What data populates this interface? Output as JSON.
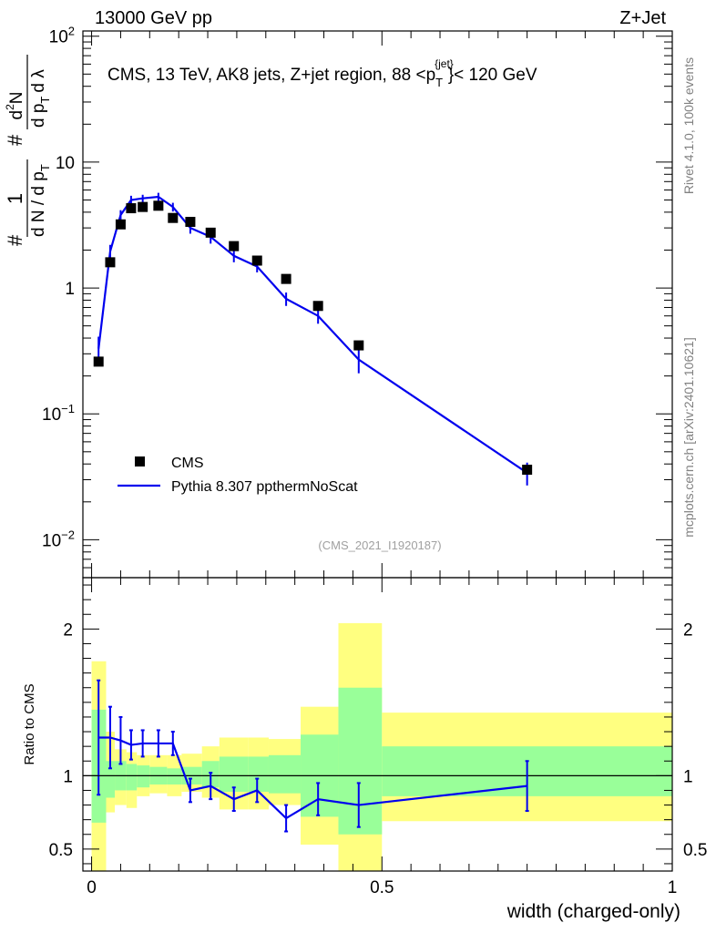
{
  "header": {
    "left": "13000 GeV pp",
    "right": "Z+Jet"
  },
  "side": {
    "rivet": "Rivet 4.1.0,  100k events",
    "mcplots": "mcplots.cern.ch [arXiv:2401.10621]"
  },
  "colors": {
    "data": "#000000",
    "mc": "#0000ee",
    "band_inner": "#99ff99",
    "band_outer": "#ffff80"
  },
  "chart_data": {
    "type": "scatter",
    "title": "CMS, 13 TeV, AK8 jets, Z+jet region, 88 <p_T^{jet}< 120 GeV",
    "title_parts": {
      "main": "CMS, 13 TeV, AK8 jets, Z+jet region, 88 <p",
      "sub": "T",
      "sup": "{jet}",
      "end": "}< 120 GeV"
    },
    "ylabel": "1/dN/dpT # d²N/dpT dλ",
    "ylabel_parts": {
      "hash": "#",
      "num": "1",
      "den": "d N / d p",
      "sub": "T",
      "hash2": "#",
      "num2": "d",
      "sup2": "2",
      "num2b": "N",
      "den2": "d p",
      "sub2": "T",
      "den2b": "d λ"
    },
    "xlabel": "width (charged-only)",
    "analysis_id": "(CMS_2021_I1920187)",
    "yscale": "log",
    "ylim": [
      0.005,
      110
    ],
    "xlim": [
      -0.015,
      1.0
    ],
    "x_ticks": [
      {
        "v": 0,
        "label": "0"
      },
      {
        "v": 0.5,
        "label": "0.5"
      },
      {
        "v": 1,
        "label": "1"
      }
    ],
    "y_ticks": [
      {
        "v": 0.01,
        "base": "10",
        "exp": "−2"
      },
      {
        "v": 0.1,
        "base": "10",
        "exp": "−1"
      },
      {
        "v": 1,
        "base": "1",
        "exp": ""
      },
      {
        "v": 10,
        "base": "10",
        "exp": ""
      },
      {
        "v": 100,
        "base": "10",
        "exp": "2"
      }
    ],
    "legend": {
      "position": "bottom-left",
      "entries": [
        "CMS",
        "Pythia 8.307 ppthermNoScat"
      ]
    },
    "series": [
      {
        "name": "CMS",
        "x": [
          0.012,
          0.032,
          0.05,
          0.068,
          0.088,
          0.115,
          0.14,
          0.17,
          0.205,
          0.245,
          0.285,
          0.335,
          0.39,
          0.46,
          0.75
        ],
        "y": [
          0.26,
          1.6,
          3.2,
          4.3,
          4.4,
          4.5,
          3.6,
          3.35,
          2.75,
          2.15,
          1.65,
          1.18,
          0.72,
          0.35,
          0.036
        ]
      },
      {
        "name": "Pythia 8.307 ppthermNoScat",
        "x": [
          0.012,
          0.032,
          0.05,
          0.068,
          0.088,
          0.115,
          0.14,
          0.17,
          0.205,
          0.245,
          0.285,
          0.335,
          0.39,
          0.46,
          0.75
        ],
        "y": [
          0.33,
          1.95,
          3.8,
          5.0,
          5.15,
          5.3,
          4.4,
          3.0,
          2.55,
          1.8,
          1.48,
          0.82,
          0.6,
          0.27,
          0.034
        ],
        "err": [
          0.08,
          0.25,
          0.35,
          0.4,
          0.35,
          0.4,
          0.35,
          0.3,
          0.3,
          0.2,
          0.15,
          0.1,
          0.08,
          0.06,
          0.007
        ]
      }
    ],
    "ratio": {
      "ylabel": "Ratio to CMS",
      "ylim": [
        0.35,
        2.35
      ],
      "y_ticks": [
        0.5,
        1,
        2
      ],
      "y_tick_labels": [
        "0.5",
        "1",
        "2"
      ],
      "bin_edges": [
        0.0,
        0.025,
        0.04,
        0.06,
        0.078,
        0.1,
        0.13,
        0.155,
        0.19,
        0.22,
        0.27,
        0.305,
        0.36,
        0.425,
        0.5,
        1.0
      ],
      "band_inner": [
        [
          0.68,
          1.45
        ],
        [
          0.85,
          1.1
        ],
        [
          0.9,
          1.1
        ],
        [
          0.9,
          1.08
        ],
        [
          0.92,
          1.07
        ],
        [
          0.94,
          1.06
        ],
        [
          0.94,
          1.05
        ],
        [
          0.94,
          1.06
        ],
        [
          0.92,
          1.1
        ],
        [
          0.89,
          1.13
        ],
        [
          0.89,
          1.13
        ],
        [
          0.88,
          1.14
        ],
        [
          0.72,
          1.28
        ],
        [
          0.6,
          1.6
        ],
        [
          0.86,
          1.2
        ]
      ],
      "band_outer": [
        [
          0.3,
          1.78
        ],
        [
          0.75,
          1.3
        ],
        [
          0.8,
          1.18
        ],
        [
          0.78,
          1.16
        ],
        [
          0.86,
          1.14
        ],
        [
          0.88,
          1.14
        ],
        [
          0.86,
          1.14
        ],
        [
          0.89,
          1.15
        ],
        [
          0.85,
          1.2
        ],
        [
          0.77,
          1.26
        ],
        [
          0.77,
          1.26
        ],
        [
          0.8,
          1.25
        ],
        [
          0.53,
          1.47
        ],
        [
          0.3,
          2.04
        ],
        [
          0.69,
          1.43
        ]
      ],
      "mc_ratio": [
        1.26,
        1.26,
        1.24,
        1.21,
        1.22,
        1.22,
        1.22,
        0.9,
        0.93,
        0.84,
        0.9,
        0.71,
        0.84,
        0.8,
        0.93
      ],
      "mc_ratio_err": [
        0.39,
        0.21,
        0.16,
        0.1,
        0.09,
        0.09,
        0.08,
        0.08,
        0.09,
        0.08,
        0.08,
        0.09,
        0.11,
        0.15,
        0.17
      ]
    }
  }
}
